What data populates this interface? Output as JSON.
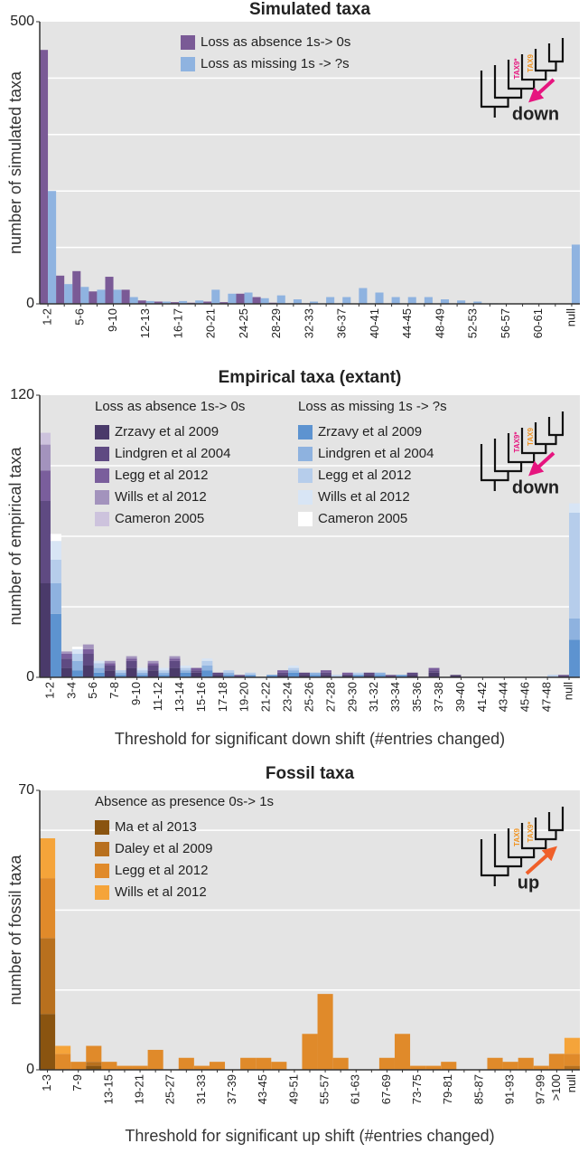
{
  "chart_data": [
    {
      "type": "bar",
      "title": "Simulated taxa",
      "y_label": "number of simulated taxa",
      "categories": [
        "1-2",
        null,
        "5-6",
        null,
        "9-10",
        null,
        "12-13",
        null,
        "16-17",
        null,
        "20-21",
        null,
        "24-25",
        null,
        "28-29",
        null,
        "32-33",
        null,
        "36-37",
        null,
        "40-41",
        null,
        "44-45",
        null,
        "48-49",
        null,
        "52-53",
        null,
        "56-57",
        null,
        "60-61",
        null,
        "null"
      ],
      "series": [
        {
          "name": "Loss as absence 1s-> 0s",
          "color": "#7a5a96",
          "values": [
            450,
            50,
            58,
            22,
            48,
            25,
            6,
            4,
            3,
            2,
            4,
            3,
            18,
            12,
            2,
            1,
            1,
            0,
            0,
            0,
            0,
            0,
            0,
            0,
            0,
            0,
            0,
            0,
            0,
            0,
            0,
            0,
            0
          ]
        },
        {
          "name": "Loss as missing 1s -> ?s",
          "color": "#8fb3e0",
          "values": [
            200,
            35,
            30,
            25,
            25,
            12,
            5,
            4,
            5,
            6,
            25,
            18,
            20,
            10,
            15,
            8,
            4,
            12,
            12,
            28,
            20,
            12,
            12,
            12,
            8,
            6,
            4,
            1,
            0,
            0,
            0,
            0,
            105
          ]
        }
      ],
      "ylim": [
        0,
        500
      ],
      "yticks": [
        0,
        500
      ],
      "grid": [
        100,
        200,
        300,
        400
      ],
      "inset": {
        "labels": [
          "TAX9*",
          "TAX9"
        ],
        "direction_label": "down",
        "arrow_up": false,
        "arrow_color": "#e6157f",
        "label_colors": [
          "#e6157f",
          "#f0921e"
        ]
      }
    },
    {
      "type": "grouped_stacked_bar",
      "title": "Empirical taxa (extant)",
      "y_label": "number of empirical taxa",
      "x_label": "Threshold for significant down shift (#entries changed)",
      "categories": [
        "1-2",
        "3-4",
        "5-6",
        "7-8",
        "9-10",
        "11-12",
        "13-14",
        "15-16",
        "17-18",
        "19-20",
        "21-22",
        "23-24",
        "25-26",
        "27-28",
        "29-30",
        "31-32",
        "33-34",
        "35-36",
        "37-38",
        "39-40",
        "41-42",
        "43-44",
        "45-46",
        "47-48",
        "null"
      ],
      "groups": [
        {
          "name": "Loss as absence 1s-> 0s",
          "series": [
            {
              "name": "Zrzavy et al 2009",
              "color": "#4a3a6a",
              "values": [
                40,
                4,
                5,
                3,
                4,
                3,
                4,
                2,
                1,
                0,
                0,
                1,
                1,
                1,
                1,
                1,
                0,
                1,
                2,
                1,
                0,
                0,
                0,
                0,
                0
              ]
            },
            {
              "name": "Lindgren et al 2004",
              "color": "#5f4a82",
              "values": [
                35,
                4,
                5,
                2,
                3,
                2,
                3,
                1,
                1,
                1,
                0,
                1,
                1,
                1,
                0,
                1,
                1,
                1,
                1,
                0,
                0,
                0,
                0,
                0,
                1
              ]
            },
            {
              "name": "Legg et al 2012",
              "color": "#7a5e9c",
              "values": [
                13,
                2,
                2,
                1,
                1,
                1,
                1,
                1,
                0,
                0,
                0,
                1,
                0,
                1,
                1,
                0,
                0,
                0,
                1,
                0,
                0,
                0,
                0,
                0,
                0
              ]
            },
            {
              "name": "Wills et al 2012",
              "color": "#a393bd",
              "values": [
                11,
                1,
                2,
                1,
                1,
                1,
                1,
                0,
                0,
                0,
                0,
                0,
                0,
                0,
                0,
                0,
                0,
                0,
                0,
                0,
                0,
                0,
                0,
                0,
                0
              ]
            },
            {
              "name": "Cameron 2005",
              "color": "#cdc3dd",
              "values": [
                5,
                0,
                0,
                0,
                0,
                0,
                0,
                0,
                0,
                0,
                0,
                0,
                0,
                0,
                0,
                0,
                0,
                0,
                0,
                0,
                0,
                0,
                0,
                0,
                0
              ]
            }
          ]
        },
        {
          "name": "Loss as missing 1s -> ?s",
          "series": [
            {
              "name": "Zrzavy et al 2009",
              "color": "#5d93d0",
              "values": [
                27,
                3,
                2,
                1,
                1,
                1,
                2,
                3,
                1,
                1,
                1,
                2,
                1,
                0,
                1,
                1,
                1,
                0,
                0,
                0,
                0,
                0,
                0,
                0,
                16
              ]
            },
            {
              "name": "Lindgren et al 2004",
              "color": "#8eb2df",
              "values": [
                13,
                4,
                2,
                1,
                1,
                1,
                1,
                2,
                1,
                0,
                0,
                1,
                1,
                0,
                0,
                1,
                0,
                0,
                0,
                0,
                0,
                0,
                0,
                0,
                9
              ]
            },
            {
              "name": "Legg et al 2012",
              "color": "#b6cdeb",
              "values": [
                10,
                3,
                2,
                1,
                1,
                1,
                1,
                2,
                1,
                1,
                0,
                1,
                0,
                1,
                1,
                0,
                0,
                0,
                0,
                0,
                0,
                0,
                0,
                1,
                45
              ]
            },
            {
              "name": "Wills et al 2012",
              "color": "#d8e5f5",
              "values": [
                8,
                2,
                1,
                0,
                1,
                1,
                1,
                1,
                0,
                0,
                0,
                1,
                0,
                0,
                0,
                0,
                0,
                0,
                0,
                0,
                0,
                0,
                0,
                0,
                4
              ]
            },
            {
              "name": "Cameron 2005",
              "color": "#ffffff",
              "values": [
                3,
                1,
                0,
                0,
                0,
                0,
                0,
                0,
                0,
                0,
                0,
                0,
                0,
                0,
                0,
                0,
                0,
                0,
                0,
                0,
                0,
                0,
                0,
                0,
                0
              ]
            }
          ]
        }
      ],
      "ylim": [
        0,
        120
      ],
      "yticks": [
        0,
        120
      ],
      "grid": [
        30,
        60,
        90
      ],
      "inset": {
        "labels": [
          "TAX9*",
          "TAX9"
        ],
        "direction_label": "down",
        "arrow_up": false,
        "arrow_color": "#e6157f",
        "label_colors": [
          "#e6157f",
          "#f0921e"
        ]
      }
    },
    {
      "type": "stacked_bar",
      "title": "Fossil taxa",
      "y_label": "number of fossil taxa",
      "x_label": "Threshold for significant up shift (#entries changed)",
      "legend_title": "Absence as presence 0s-> 1s",
      "categories": [
        "1-3",
        null,
        "7-9",
        null,
        "13-15",
        null,
        "19-21",
        null,
        "25-27",
        null,
        "31-33",
        null,
        "37-39",
        null,
        "43-45",
        null,
        "49-51",
        null,
        "55-57",
        null,
        "61-63",
        null,
        "67-69",
        null,
        "73-75",
        null,
        "79-81",
        null,
        "85-87",
        null,
        "91-93",
        null,
        "97-99",
        ">100",
        "null"
      ],
      "series": [
        {
          "name": "Ma et al 2013",
          "color": "#8a5410",
          "values": [
            14,
            0,
            0,
            1,
            0,
            0,
            0,
            0,
            0,
            0,
            0,
            0,
            0,
            0,
            0,
            0,
            0,
            0,
            0,
            0,
            0,
            0,
            0,
            0,
            0,
            0,
            0,
            0,
            0,
            0,
            0,
            0,
            0,
            0,
            0
          ]
        },
        {
          "name": "Daley et al 2009",
          "color": "#b8701e",
          "values": [
            19,
            0,
            0,
            1,
            0,
            0,
            0,
            0,
            0,
            0,
            0,
            0,
            0,
            0,
            0,
            0,
            0,
            0,
            0,
            0,
            0,
            0,
            0,
            0,
            0,
            0,
            0,
            0,
            0,
            0,
            0,
            0,
            0,
            0,
            1
          ]
        },
        {
          "name": "Legg et al 2012",
          "color": "#e08a2a",
          "values": [
            15,
            4,
            2,
            4,
            2,
            1,
            1,
            5,
            0,
            3,
            1,
            2,
            0,
            3,
            3,
            2,
            0,
            9,
            19,
            3,
            0,
            0,
            3,
            9,
            1,
            1,
            2,
            0,
            0,
            3,
            2,
            3,
            1,
            4,
            3
          ]
        },
        {
          "name": "Wills et al 2012",
          "color": "#f5a43a",
          "values": [
            10,
            2,
            0,
            0,
            0,
            0,
            0,
            0,
            0,
            0,
            0,
            0,
            0,
            0,
            0,
            0,
            0,
            0,
            0,
            0,
            0,
            0,
            0,
            0,
            0,
            0,
            0,
            0,
            0,
            0,
            0,
            0,
            0,
            0,
            4
          ]
        }
      ],
      "ylim": [
        0,
        70
      ],
      "yticks": [
        0,
        70
      ],
      "grid": [
        20,
        40,
        60
      ],
      "inset": {
        "labels": [
          "TAX9",
          "TAX9*"
        ],
        "direction_label": "up",
        "arrow_up": true,
        "arrow_color": "#f0602a",
        "label_colors": [
          "#f0921e",
          "#f0921e"
        ]
      }
    }
  ]
}
